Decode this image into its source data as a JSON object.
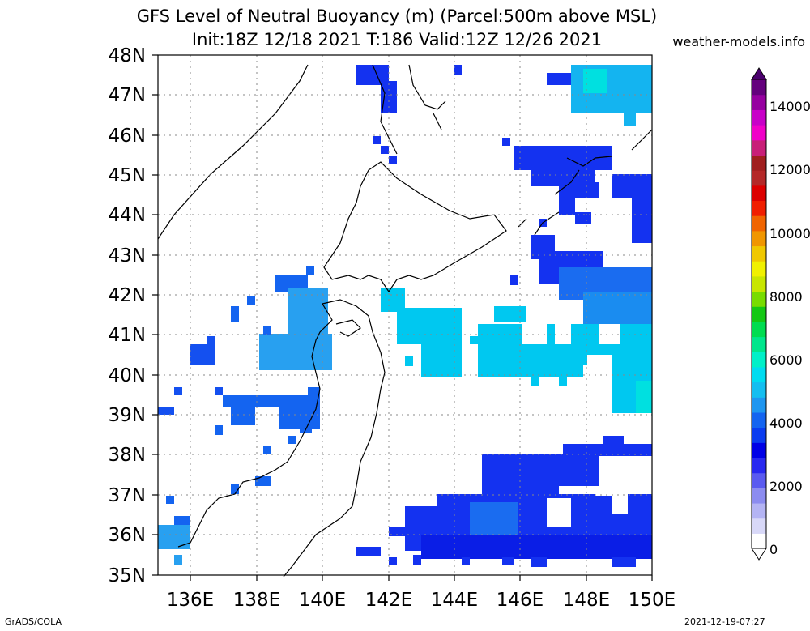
{
  "title_line1": "GFS Level of Neutral Buoyancy (m) (Parcel:500m above MSL)",
  "title_line2": "Init:18Z 12/18 2021 T:186 Valid:12Z 12/26 2021",
  "site": "weather-models.info",
  "footer_left": "GrADS/COLA",
  "footer_right": "2021-12-19-07:27",
  "map": {
    "lat_labels": [
      "48N",
      "47N",
      "46N",
      "45N",
      "44N",
      "43N",
      "42N",
      "41N",
      "40N",
      "39N",
      "38N",
      "37N",
      "36N",
      "35N"
    ],
    "lon_labels": [
      "136E",
      "138E",
      "140E",
      "142E",
      "144E",
      "146E",
      "148E",
      "150E"
    ]
  },
  "colorbar": {
    "labels": [
      "14000",
      "12000",
      "10000",
      "8000",
      "6000",
      "4000",
      "2000",
      "0"
    ],
    "colors": [
      "#ffffff",
      "#d8d8f8",
      "#b4b4f4",
      "#8c8cf0",
      "#5a5af0",
      "#2828f0",
      "#0000e6",
      "#0a3cf0",
      "#1464f0",
      "#1e96f0",
      "#14bef0",
      "#00dcf0",
      "#00f0c8",
      "#00e68c",
      "#00dc50",
      "#14c814",
      "#78dc00",
      "#c8e600",
      "#f0f000",
      "#f0c800",
      "#f09600",
      "#f06400",
      "#f01e00",
      "#dc0000",
      "#b42828",
      "#a01e1e",
      "#c81e78",
      "#f000c8",
      "#c800c8",
      "#9600a0",
      "#64007d"
    ]
  }
}
